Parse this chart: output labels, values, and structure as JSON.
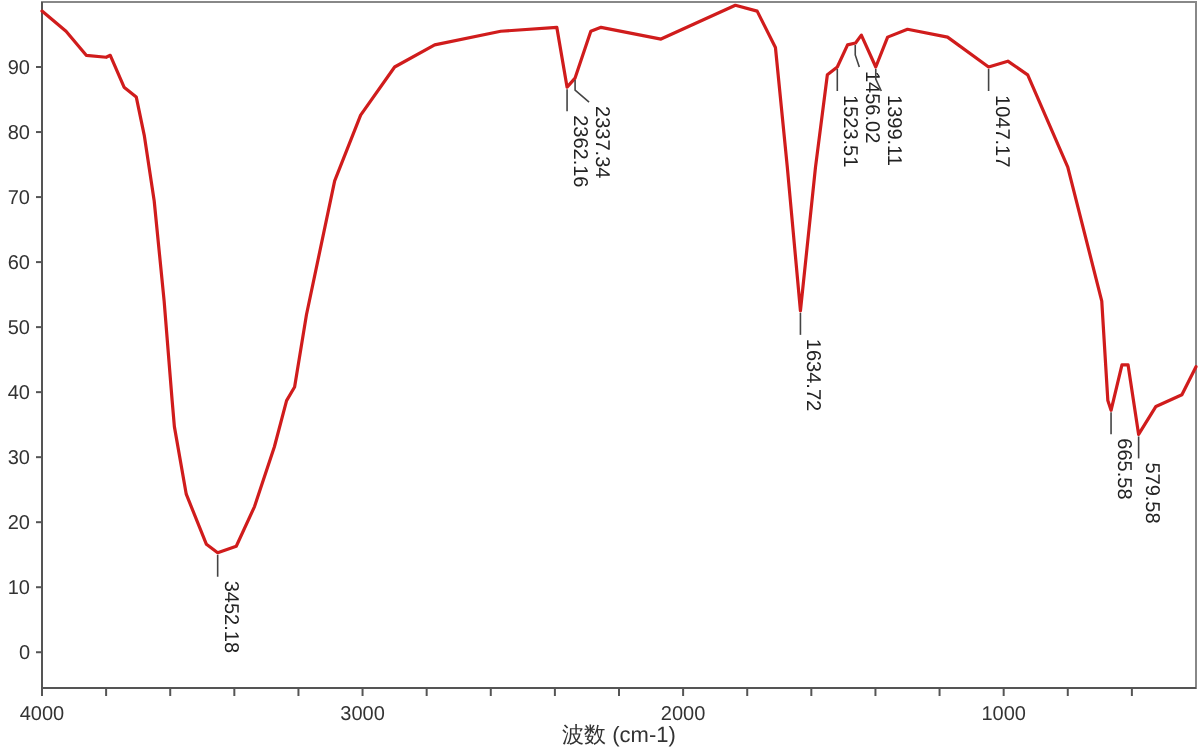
{
  "chart_data": {
    "type": "line",
    "xlabel": "波数 (cm-1)",
    "series": [
      {
        "color": "#d01c1c",
        "x": [
          4000,
          3925,
          3862,
          3800,
          3787,
          3744,
          3706,
          3681,
          3650,
          3619,
          3594,
          3587,
          3550,
          3487,
          3452,
          3394,
          3337,
          3275,
          3237,
          3212,
          3175,
          3087,
          3006,
          2900,
          2775,
          2569,
          2394,
          2362,
          2337,
          2288,
          2256,
          2069,
          1837,
          1769,
          1712,
          1675,
          1634,
          1587,
          1550,
          1519,
          1487,
          1462,
          1444,
          1399,
          1362,
          1300,
          1175,
          1047,
          987,
          925,
          800,
          694,
          675,
          665,
          631,
          612,
          579,
          525,
          444,
          400
        ],
        "values": [
          98.6,
          95.5,
          91.8,
          91.5,
          91.8,
          86.9,
          85.4,
          79.5,
          69.4,
          54,
          38.7,
          34.7,
          24.3,
          16.6,
          15.3,
          16.3,
          22.4,
          31.6,
          38.7,
          40.8,
          51.9,
          72.5,
          82.6,
          90,
          93.4,
          95.5,
          96.1,
          86.9,
          88.3,
          95.5,
          96.1,
          94.3,
          99.5,
          98.6,
          93,
          74.6,
          52.5,
          74.6,
          88.8,
          90,
          93.4,
          93.7,
          94.9,
          90,
          94.6,
          95.8,
          94.6,
          90,
          90.9,
          88.8,
          74.6,
          54,
          38.7,
          37.2,
          44.2,
          44.2,
          33.5,
          37.8,
          39.6,
          43.9
        ]
      }
    ],
    "xlim": [
      4000,
      400
    ],
    "ylim": [
      -5.5,
      100
    ],
    "xticks": [
      4000,
      {
        "value": 3800,
        "label": null
      },
      {
        "value": 3600,
        "label": null
      },
      {
        "value": 3400,
        "label": null
      },
      {
        "value": 3200,
        "label": null
      },
      3000,
      {
        "value": 2800,
        "label": null
      },
      {
        "value": 2600,
        "label": null
      },
      {
        "value": 2400,
        "label": null
      },
      {
        "value": 2200,
        "label": null
      },
      2000,
      {
        "value": 1800,
        "label": null
      },
      {
        "value": 1600,
        "label": null
      },
      {
        "value": 1400,
        "label": null
      },
      {
        "value": 1200,
        "label": null
      },
      1000,
      {
        "value": 800,
        "label": null
      },
      {
        "value": 600,
        "label": null
      }
    ],
    "yticks": [
      0,
      10,
      20,
      30,
      40,
      50,
      60,
      70,
      80,
      90
    ],
    "annotations": [
      {
        "text": "3452.18",
        "x": 3452,
        "y": 15.3
      },
      {
        "text": "2362.16",
        "x": 2362,
        "y": 86.9
      },
      {
        "text": "2337.34",
        "x": 2337,
        "y": 88.3
      },
      {
        "text": "1634.72",
        "x": 1634,
        "y": 52.5
      },
      {
        "text": "1523.51",
        "x": 1519,
        "y": 90
      },
      {
        "text": "1456.02",
        "x": 1463,
        "y": 93.7
      },
      {
        "text": "1399.11",
        "x": 1399,
        "y": 90
      },
      {
        "text": "1047.17",
        "x": 1047,
        "y": 90
      },
      {
        "text": "665.58",
        "x": 665,
        "y": 37.2
      },
      {
        "text": "579.58",
        "x": 579,
        "y": 33.5
      }
    ],
    "grid": false
  }
}
